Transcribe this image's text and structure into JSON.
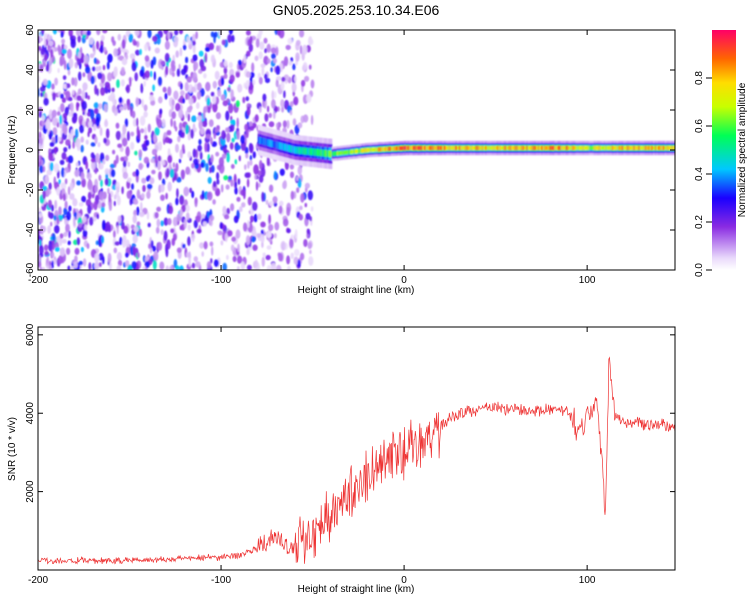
{
  "title": "GN05.2025.253.10.34.E06",
  "chart_data": [
    {
      "type": "heatmap",
      "title": "GN05.2025.253.10.34.E06",
      "xlabel": "Height of straight line (km)",
      "ylabel": "Frequency (Hz)",
      "xlim": [
        -200,
        148
      ],
      "ylim": [
        -60,
        60
      ],
      "xticks": [
        -200,
        -100,
        0,
        100
      ],
      "xtick_labels": [
        "-200",
        "-100",
        "0",
        "100"
      ],
      "yticks": [
        60,
        40,
        20,
        0,
        -20,
        -40,
        -60
      ],
      "ytick_labels": [
        "60",
        "40",
        "20",
        "0",
        "-20",
        "-40",
        "-60"
      ],
      "colorbar": {
        "label": "Normalized spectral amplitude",
        "range": [
          0,
          1
        ],
        "ticks": [
          0.0,
          0.2,
          0.4,
          0.6,
          0.8
        ],
        "tick_labels": [
          "0.0",
          "0.2",
          "0.4",
          "0.6",
          "0.8"
        ]
      },
      "ridge": {
        "description": "narrow band of high amplitude near 0 Hz",
        "x": [
          -80,
          -60,
          -40,
          -20,
          0,
          20,
          40,
          60,
          80,
          100,
          120,
          148
        ],
        "center_hz": [
          5,
          0,
          -2,
          0,
          1,
          1,
          1,
          1,
          1,
          1,
          1,
          1
        ],
        "peak_amplitude": [
          0.35,
          0.45,
          0.6,
          0.75,
          0.9,
          0.85,
          0.8,
          0.8,
          0.9,
          0.7,
          0.8,
          0.8
        ]
      },
      "noise_region": {
        "x_from": -200,
        "x_to": -60,
        "amplitude": [
          0.05,
          0.35
        ]
      }
    },
    {
      "type": "line",
      "xlabel": "Height of straight line (km)",
      "ylabel": "SNR (10 * v/v)",
      "xlim": [
        -200,
        148
      ],
      "ylim": [
        0,
        6200
      ],
      "xticks": [
        -200,
        -100,
        0,
        100
      ],
      "xtick_labels": [
        "-200",
        "-100",
        "0",
        "100"
      ],
      "yticks": [
        2000,
        4000,
        6000
      ],
      "ytick_labels": [
        "2000",
        "4000",
        "6000"
      ],
      "line_color": "#ee3333",
      "series": [
        {
          "name": "SNR",
          "x": [
            -200,
            -180,
            -160,
            -140,
            -120,
            -100,
            -90,
            -80,
            -70,
            -66,
            -60,
            -50,
            -40,
            -30,
            -20,
            -10,
            0,
            10,
            20,
            30,
            40,
            50,
            60,
            70,
            80,
            90,
            95,
            100,
            105,
            108,
            110,
            112,
            115,
            120,
            130,
            140,
            148
          ],
          "y": [
            250,
            230,
            240,
            260,
            300,
            330,
            380,
            550,
            850,
            650,
            500,
            1000,
            1500,
            1900,
            2400,
            2800,
            3000,
            3200,
            3700,
            4000,
            4100,
            4150,
            4100,
            4050,
            4100,
            4050,
            3500,
            4000,
            4200,
            3000,
            1400,
            5500,
            4000,
            3800,
            3750,
            3700,
            3650
          ]
        }
      ]
    }
  ]
}
